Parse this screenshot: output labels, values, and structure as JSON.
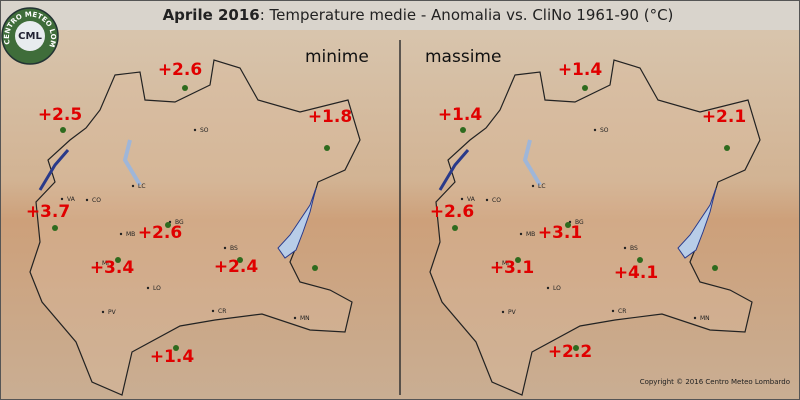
{
  "header": {
    "title_bold": "Aprile 2016",
    "title_rest": ": Temperature medie - Anomalia vs. CliNo 1961-90 (°C)"
  },
  "logo": {
    "text": "CML",
    "ring_text": "CENTRO METEO LOMBARDO"
  },
  "panels": [
    {
      "label": "minime",
      "stations": [
        "+2.6",
        "+2.5",
        "+1.8",
        "+3.7",
        "+2.6",
        "+3.4",
        "+2.4",
        "+1.4"
      ]
    },
    {
      "label": "massime",
      "stations": [
        "+1.4",
        "+1.4",
        "+2.1",
        "+2.6",
        "+3.1",
        "+3.1",
        "+4.1",
        "+2.2"
      ]
    }
  ],
  "cities": [
    "SO",
    "LC",
    "CO",
    "VA",
    "BG",
    "MB",
    "BS",
    "MI",
    "LO",
    "CR",
    "PV",
    "MN"
  ],
  "copyright": "Copyright © 2016 Centro Meteo Lombardo"
}
